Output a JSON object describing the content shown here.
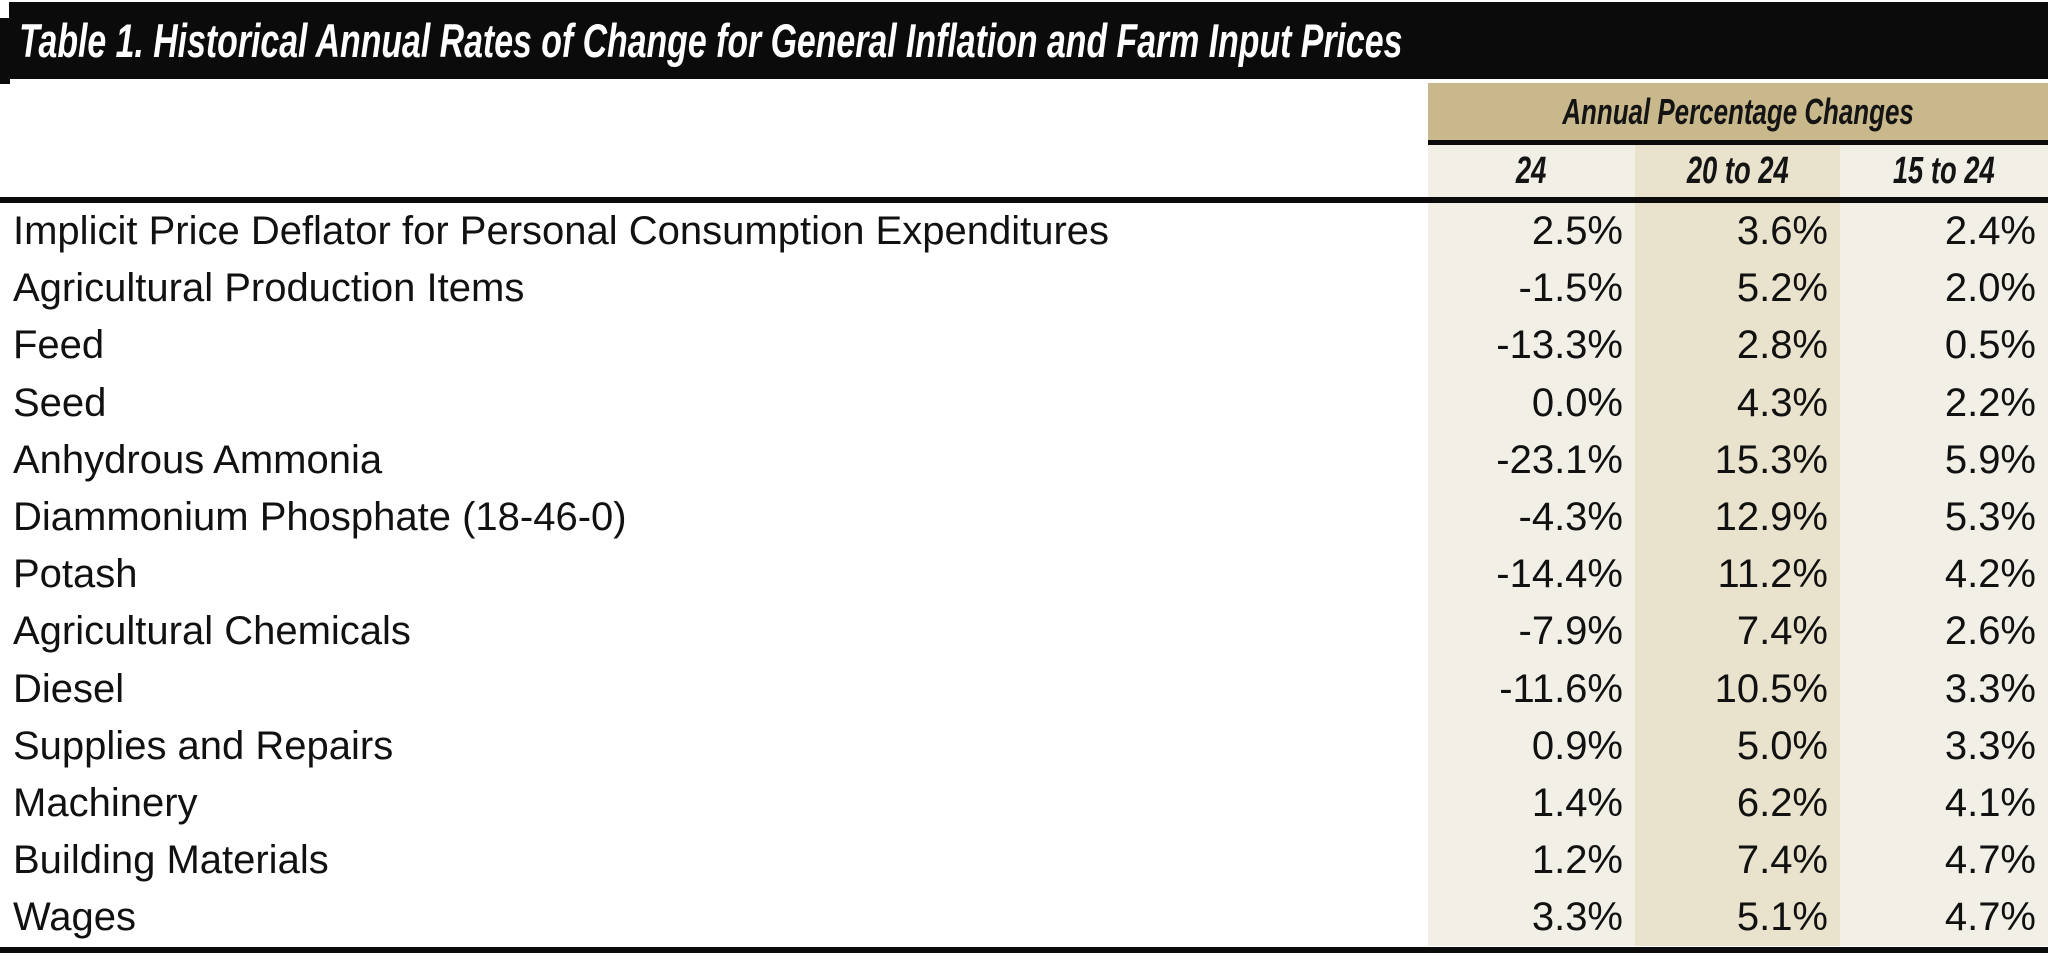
{
  "title_bar": {
    "title": "Table 1.  Historical Annual Rates of Change for General Inflation and Farm Input Prices"
  },
  "table": {
    "group_header": "Annual Percentage Changes",
    "columns": [
      "24",
      "20 to 24",
      "15 to 24"
    ],
    "rows": [
      {
        "label": "Implicit Price Deflator for Personal Consumption Expenditures",
        "values": [
          "2.5%",
          "3.6%",
          "2.4%"
        ]
      },
      {
        "label": "Agricultural Production Items",
        "values": [
          "-1.5%",
          "5.2%",
          "2.0%"
        ]
      },
      {
        "label": "Feed",
        "values": [
          "-13.3%",
          "2.8%",
          "0.5%"
        ]
      },
      {
        "label": "Seed",
        "values": [
          "0.0%",
          "4.3%",
          "2.2%"
        ]
      },
      {
        "label": "Anhydrous Ammonia",
        "values": [
          "-23.1%",
          "15.3%",
          "5.9%"
        ]
      },
      {
        "label": "Diammonium Phosphate (18-46-0)",
        "values": [
          "-4.3%",
          "12.9%",
          "5.3%"
        ]
      },
      {
        "label": "Potash",
        "values": [
          "-14.4%",
          "11.2%",
          "4.2%"
        ]
      },
      {
        "label": "Agricultural Chemicals",
        "values": [
          "-7.9%",
          "7.4%",
          "2.6%"
        ]
      },
      {
        "label": "Diesel",
        "values": [
          "-11.6%",
          "10.5%",
          "3.3%"
        ]
      },
      {
        "label": "Supplies and Repairs",
        "values": [
          "0.9%",
          "5.0%",
          "3.3%"
        ]
      },
      {
        "label": "Machinery",
        "values": [
          "1.4%",
          "6.2%",
          "4.1%"
        ]
      },
      {
        "label": "Building Materials",
        "values": [
          "1.2%",
          "7.4%",
          "4.7%"
        ]
      },
      {
        "label": "Wages",
        "values": [
          "3.3%",
          "5.1%",
          "4.7%"
        ]
      }
    ]
  },
  "colors": {
    "title_bar_background": "#0b0b0b",
    "group_header_background": "#c9b88c",
    "column_light_background": "#f2efe7",
    "column_mid_background": "#e9e2cd",
    "title_text": "#ffffff",
    "body_text": "#111111"
  },
  "chart_data": {
    "type": "table",
    "title": "Table 1.  Historical Annual Rates of Change for General Inflation and Farm Input Prices",
    "group_header": "Annual Percentage Changes",
    "categories": [
      "24",
      "20 to 24",
      "15 to 24"
    ],
    "series": [
      {
        "name": "Implicit Price Deflator for Personal Consumption Expenditures",
        "values": [
          2.5,
          3.6,
          2.4
        ]
      },
      {
        "name": "Agricultural Production Items",
        "values": [
          -1.5,
          5.2,
          2.0
        ]
      },
      {
        "name": "Feed",
        "values": [
          -13.3,
          2.8,
          0.5
        ]
      },
      {
        "name": "Seed",
        "values": [
          0.0,
          4.3,
          2.2
        ]
      },
      {
        "name": "Anhydrous Ammonia",
        "values": [
          -23.1,
          15.3,
          5.9
        ]
      },
      {
        "name": "Diammonium Phosphate (18-46-0)",
        "values": [
          -4.3,
          12.9,
          5.3
        ]
      },
      {
        "name": "Potash",
        "values": [
          -14.4,
          11.2,
          4.2
        ]
      },
      {
        "name": "Agricultural Chemicals",
        "values": [
          -7.9,
          7.4,
          2.6
        ]
      },
      {
        "name": "Diesel",
        "values": [
          -11.6,
          10.5,
          3.3
        ]
      },
      {
        "name": "Supplies and Repairs",
        "values": [
          0.9,
          5.0,
          3.3
        ]
      },
      {
        "name": "Machinery",
        "values": [
          1.4,
          6.2,
          4.1
        ]
      },
      {
        "name": "Building Materials",
        "values": [
          1.2,
          7.4,
          4.7
        ]
      },
      {
        "name": "Wages",
        "values": [
          3.3,
          5.1,
          4.7
        ]
      }
    ],
    "units": "percent"
  }
}
